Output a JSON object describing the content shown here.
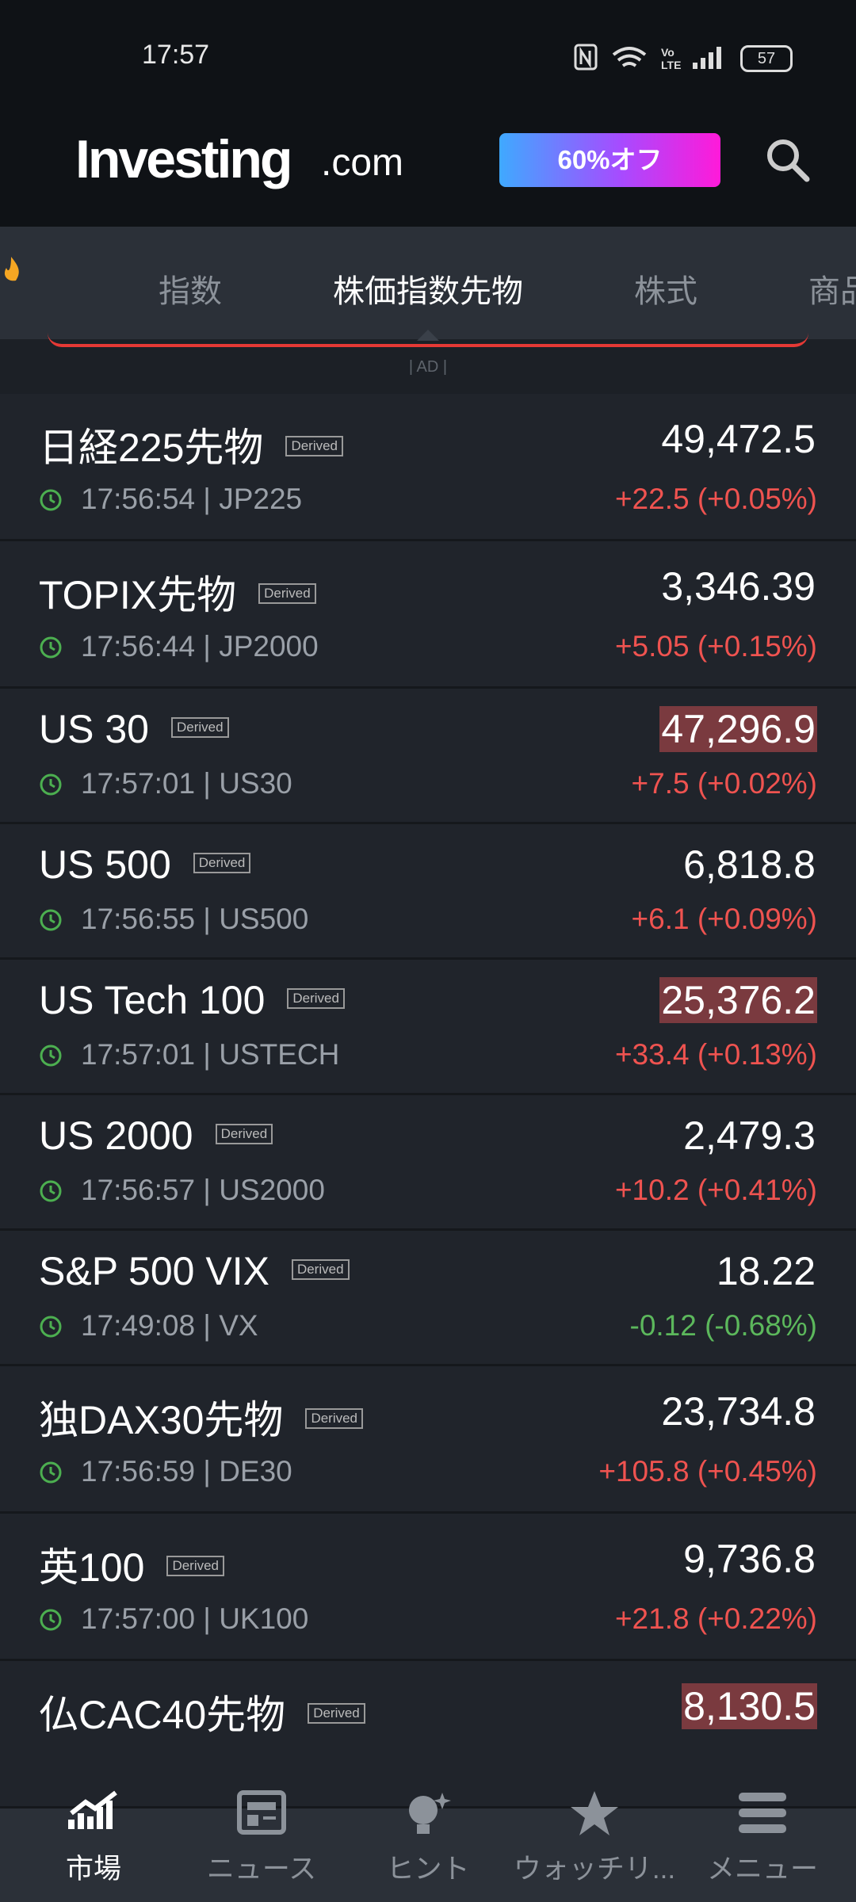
{
  "status_bar": {
    "time": "17:57",
    "battery": "57"
  },
  "header": {
    "logo": "Investing",
    "logo_suffix": ".com",
    "promo": "60%オフ"
  },
  "tabs": {
    "items": [
      "指数",
      "株価指数先物",
      "株式",
      "商品"
    ],
    "active": 1
  },
  "ad_label": "| AD |",
  "rows": [
    {
      "name": "日経225先物",
      "tag": "Derived",
      "meta": "17:56:54 | JP225",
      "price": "49,472.5",
      "change": "+22.5 (+0.05%)",
      "trend": "up",
      "highlight": false
    },
    {
      "name": "TOPIX先物",
      "tag": "Derived",
      "meta": "17:56:44 | JP2000",
      "price": "3,346.39",
      "change": "+5.05 (+0.15%)",
      "trend": "up",
      "highlight": false
    },
    {
      "name": "US 30",
      "tag": "Derived",
      "meta": "17:57:01 | US30",
      "price": "47,296.9",
      "change": "+7.5 (+0.02%)",
      "trend": "up",
      "highlight": true
    },
    {
      "name": "US 500",
      "tag": "Derived",
      "meta": "17:56:55 | US500",
      "price": "6,818.8",
      "change": "+6.1 (+0.09%)",
      "trend": "up",
      "highlight": false
    },
    {
      "name": "US Tech 100",
      "tag": "Derived",
      "meta": "17:57:01 | USTECH",
      "price": "25,376.2",
      "change": "+33.4 (+0.13%)",
      "trend": "up",
      "highlight": true
    },
    {
      "name": "US 2000",
      "tag": "Derived",
      "meta": "17:56:57 | US2000",
      "price": "2,479.3",
      "change": "+10.2 (+0.41%)",
      "trend": "up",
      "highlight": false
    },
    {
      "name": "S&P 500 VIX",
      "tag": "Derived",
      "meta": "17:49:08 | VX",
      "price": "18.22",
      "change": "-0.12 (-0.68%)",
      "trend": "down",
      "highlight": false
    },
    {
      "name": "独DAX30先物",
      "tag": "Derived",
      "meta": "17:56:59 | DE30",
      "price": "23,734.8",
      "change": "+105.8 (+0.45%)",
      "trend": "up",
      "highlight": false
    },
    {
      "name": "英100",
      "tag": "Derived",
      "meta": "17:57:00 | UK100",
      "price": "9,736.8",
      "change": "+21.8 (+0.22%)",
      "trend": "up",
      "highlight": false
    },
    {
      "name": "仏CAC40先物",
      "tag": "Derived",
      "meta": "",
      "price": "8,130.5",
      "change": "",
      "trend": "up",
      "highlight": true
    }
  ],
  "nav": {
    "items": [
      "市場",
      "ニュース",
      "ヒント",
      "ウォッチリ...",
      "メニュー"
    ],
    "active": 0
  }
}
